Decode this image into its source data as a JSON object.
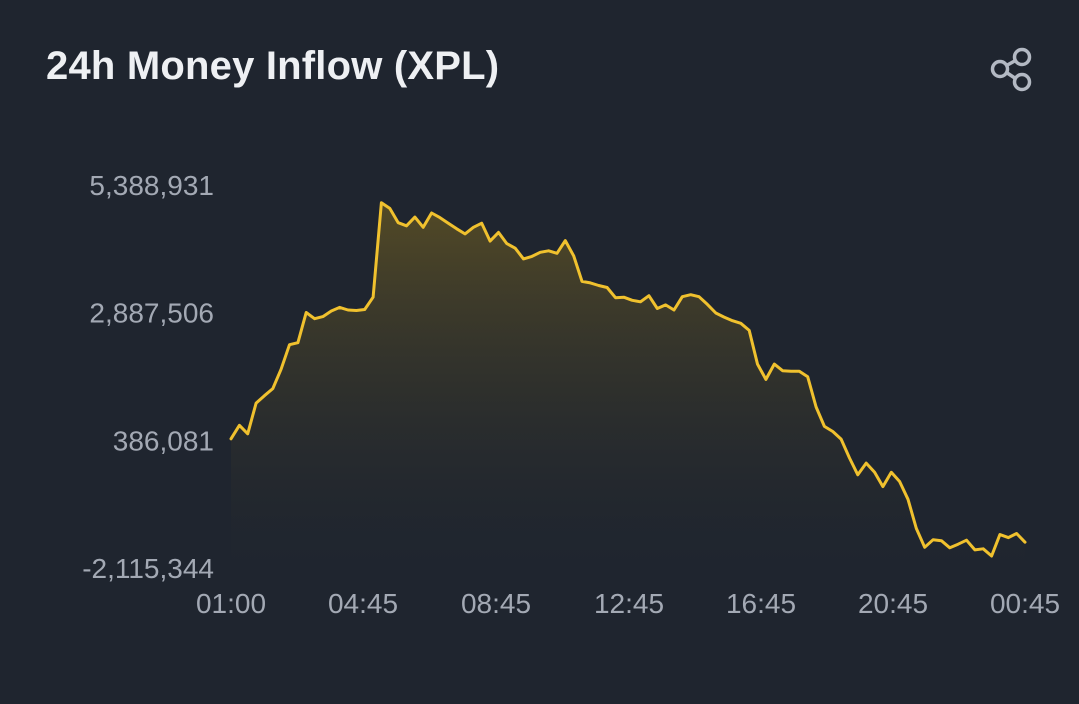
{
  "header": {
    "title": "24h Money Inflow (XPL)",
    "share_icon": "share-icon"
  },
  "colors": {
    "background": "#1f252f",
    "line": "#f0c12e",
    "area_top": "#6a5a22",
    "text": "#a3a9b4",
    "title": "#eef0f3"
  },
  "chart_data": {
    "type": "area",
    "title": "24h Money Inflow (XPL)",
    "xlabel": "",
    "ylabel": "",
    "grid": false,
    "legend": "none",
    "y_ticks": [
      "5,388,931",
      "2,887,506",
      "386,081",
      "-2,115,344"
    ],
    "y_tick_values": [
      5388931,
      2887506,
      386081,
      -2115344
    ],
    "x_ticks": [
      "01:00",
      "04:45",
      "08:45",
      "12:45",
      "16:45",
      "20:45",
      "00:45"
    ],
    "ylim": [
      -2115344,
      5388931
    ],
    "series": [
      {
        "values": [
          416000,
          680000,
          515000,
          1115000,
          1260000,
          1400000,
          1780000,
          2260000,
          2300000,
          2890000,
          2770000,
          2810000,
          2920000,
          2990000,
          2940000,
          2930000,
          2950000,
          3190000,
          5040000,
          4930000,
          4650000,
          4590000,
          4760000,
          4560000,
          4840000,
          4750000,
          4640000,
          4530000,
          4430000,
          4560000,
          4640000,
          4290000,
          4460000,
          4240000,
          4150000,
          3940000,
          3990000,
          4070000,
          4100000,
          4050000,
          4300000,
          4000000,
          3500000,
          3470000,
          3420000,
          3380000,
          3180000,
          3190000,
          3130000,
          3100000,
          3220000,
          2970000,
          3040000,
          2940000,
          3200000,
          3240000,
          3200000,
          3050000,
          2880000,
          2800000,
          2730000,
          2680000,
          2540000,
          1880000,
          1580000,
          1880000,
          1750000,
          1740000,
          1740000,
          1630000,
          1040000,
          660000,
          560000,
          410000,
          40000,
          -290000,
          -60000,
          -240000,
          -520000,
          -240000,
          -420000,
          -770000,
          -1340000,
          -1710000,
          -1560000,
          -1580000,
          -1720000,
          -1650000,
          -1570000,
          -1760000,
          -1740000,
          -1880000,
          -1460000,
          -1520000,
          -1440000,
          -1610000
        ]
      }
    ]
  }
}
